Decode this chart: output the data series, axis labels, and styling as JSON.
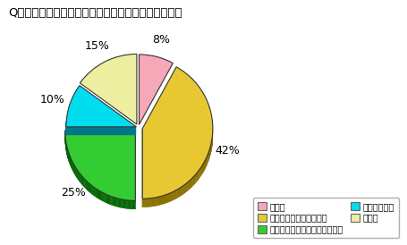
{
  "title": "Q．身近な川の現在の水質についてどう思いますか？",
  "slices": [
    8,
    42,
    25,
    10,
    15
  ],
  "pct_labels": [
    "8%",
    "42%",
    "25%",
    "10%",
    "15%"
  ],
  "colors": [
    "#F4A8B8",
    "#E8C832",
    "#33CC33",
    "#00DDEE",
    "#EEEEA0"
  ],
  "shadow_colors": [
    "#9B6070",
    "#8B7000",
    "#006600",
    "#007788",
    "#888840"
  ],
  "legend_labels": [
    "きれい",
    "どちらかといえばきれい",
    "どちらかといえばよごれている",
    "よごれている",
    "無記入"
  ],
  "legend_colors": [
    "#F4A8B8",
    "#E8C832",
    "#33CC33",
    "#00DDEE",
    "#EEEEA0"
  ],
  "startangle": 90,
  "depth": 0.12,
  "explode": [
    0.04,
    0.06,
    0.06,
    0.03,
    0.05
  ]
}
